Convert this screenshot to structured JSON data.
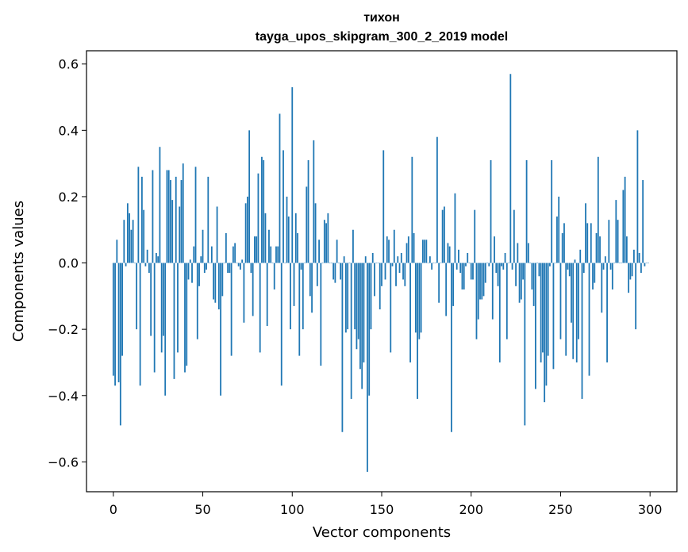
{
  "chart_data": {
    "type": "bar",
    "title": "тихон",
    "subtitle": "tayga_upos_skipgram_300_2_2019 model",
    "xlabel": "Vector components",
    "ylabel": "Components values",
    "xlim": [
      -15,
      315
    ],
    "ylim": [
      -0.69,
      0.64
    ],
    "xticks": [
      0,
      50,
      100,
      150,
      200,
      250,
      300
    ],
    "yticks": [
      -0.6,
      -0.4,
      -0.2,
      0.0,
      0.2,
      0.4,
      0.6
    ],
    "ytick_labels": [
      "−0.6",
      "−0.4",
      "−0.2",
      "0.0",
      "0.2",
      "0.4",
      "0.6"
    ],
    "bar_color": "#1f77b4",
    "grid": false,
    "values": [
      -0.34,
      -0.37,
      0.07,
      -0.36,
      -0.49,
      -0.28,
      0.13,
      -0.01,
      0.18,
      0.15,
      0.1,
      0.13,
      0.0,
      -0.2,
      0.29,
      -0.37,
      0.26,
      0.16,
      -0.01,
      0.04,
      -0.03,
      -0.22,
      0.28,
      -0.33,
      0.03,
      0.02,
      0.35,
      -0.27,
      -0.22,
      -0.4,
      0.28,
      0.28,
      0.25,
      0.19,
      -0.35,
      0.26,
      -0.27,
      0.17,
      0.25,
      0.3,
      -0.33,
      -0.31,
      -0.05,
      0.01,
      -0.06,
      0.05,
      0.29,
      -0.23,
      -0.07,
      0.02,
      0.1,
      -0.03,
      -0.02,
      0.26,
      0.0,
      0.05,
      -0.11,
      -0.12,
      0.17,
      -0.14,
      -0.4,
      -0.1,
      0.0,
      0.09,
      -0.03,
      -0.03,
      -0.28,
      0.05,
      0.06,
      0.0,
      -0.01,
      -0.02,
      0.01,
      -0.18,
      0.18,
      0.2,
      0.4,
      -0.03,
      -0.16,
      0.08,
      0.08,
      0.27,
      -0.27,
      0.32,
      0.31,
      0.15,
      -0.19,
      0.1,
      0.05,
      0.0,
      -0.08,
      0.05,
      0.05,
      0.45,
      -0.37,
      0.34,
      0.0,
      0.2,
      0.14,
      -0.2,
      0.53,
      -0.13,
      0.15,
      0.09,
      -0.28,
      -0.02,
      -0.2,
      0.0,
      0.23,
      0.31,
      -0.1,
      -0.15,
      0.37,
      0.18,
      -0.07,
      0.07,
      -0.31,
      0.0,
      0.13,
      0.12,
      0.15,
      0.0,
      0.0,
      -0.05,
      -0.06,
      0.07,
      0.0,
      -0.05,
      -0.51,
      0.02,
      -0.21,
      -0.2,
      0.0,
      -0.41,
      0.1,
      -0.2,
      -0.26,
      -0.23,
      -0.32,
      -0.38,
      -0.3,
      0.02,
      -0.63,
      -0.4,
      -0.2,
      0.03,
      -0.1,
      0.0,
      0.0,
      -0.14,
      -0.07,
      0.34,
      -0.05,
      0.08,
      0.07,
      -0.27,
      -0.01,
      0.1,
      -0.07,
      0.02,
      -0.03,
      0.03,
      -0.05,
      -0.07,
      0.06,
      0.08,
      -0.3,
      0.32,
      0.09,
      -0.21,
      -0.41,
      -0.23,
      -0.21,
      0.07,
      0.07,
      0.07,
      0.0,
      0.02,
      -0.02,
      0.0,
      0.0,
      0.38,
      -0.12,
      0.0,
      0.16,
      0.17,
      -0.16,
      0.06,
      0.05,
      -0.51,
      -0.13,
      0.21,
      -0.02,
      0.04,
      -0.03,
      -0.08,
      -0.08,
      -0.01,
      0.03,
      0.0,
      -0.05,
      -0.05,
      0.16,
      -0.23,
      -0.17,
      -0.11,
      -0.11,
      -0.1,
      -0.06,
      0.0,
      -0.01,
      0.31,
      -0.17,
      0.08,
      -0.03,
      -0.07,
      -0.3,
      -0.01,
      -0.02,
      0.03,
      -0.23,
      0.0,
      0.57,
      -0.02,
      0.16,
      -0.07,
      0.06,
      -0.12,
      -0.11,
      -0.05,
      -0.49,
      0.31,
      0.06,
      0.0,
      -0.08,
      -0.13,
      -0.38,
      0.0,
      -0.04,
      -0.3,
      -0.27,
      -0.42,
      -0.37,
      -0.28,
      -0.01,
      0.31,
      -0.32,
      0.0,
      0.14,
      0.2,
      -0.23,
      0.09,
      0.12,
      -0.28,
      -0.02,
      -0.04,
      -0.18,
      -0.29,
      0.01,
      -0.3,
      -0.23,
      0.04,
      -0.41,
      -0.03,
      0.18,
      0.12,
      -0.34,
      0.12,
      -0.08,
      -0.06,
      0.09,
      0.32,
      0.08,
      -0.15,
      -0.02,
      0.02,
      -0.3,
      0.13,
      -0.02,
      -0.08,
      0.0,
      0.19,
      0.13,
      0.0,
      0.0,
      0.22,
      0.26,
      0.08,
      -0.09,
      -0.05,
      -0.04,
      0.04,
      -0.2,
      0.4,
      0.03,
      -0.03,
      0.25,
      -0.01,
      0.0,
      0.0
    ]
  }
}
